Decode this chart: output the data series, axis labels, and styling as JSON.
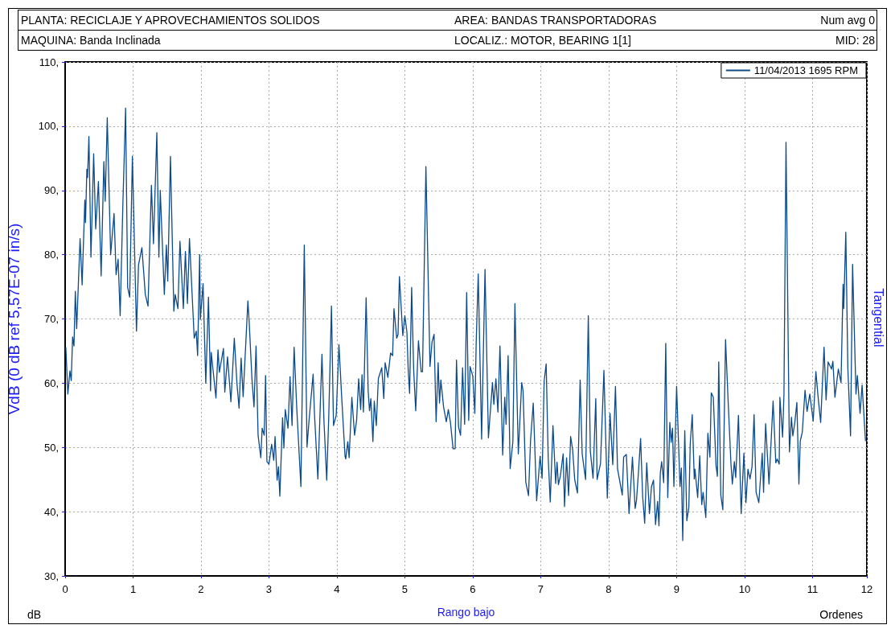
{
  "chart_data": {
    "type": "line",
    "ylabel": "VdB (0 dB ref 5,57E-07 in/s)",
    "xlabel": "Rango bajo",
    "annotations": [
      "PLANTA: RECICLAJE Y APROVECHAMIENTOS SOLIDOS",
      "AREA: BANDAS TRANSPORTADORAS",
      "Num avg 0",
      "MAQUINA: Banda Inclinada",
      "LOCALIZ.: MOTOR, BEARING 1[1]",
      "MID: 28",
      "Tangential",
      "dB",
      "Ordenes"
    ],
    "xlim": [
      0,
      11.8
    ],
    "xticks": [
      0,
      1,
      2,
      3,
      4,
      5,
      6,
      7,
      8,
      9,
      10,
      11,
      {
        "value": 11.8,
        "label": "12"
      }
    ],
    "ylim": [
      30,
      110
    ],
    "yticks": [
      {
        "value": 30,
        "label": "30,"
      },
      {
        "value": 40,
        "label": "40,"
      },
      {
        "value": 50,
        "label": "50,"
      },
      {
        "value": 60,
        "label": "60,"
      },
      {
        "value": 70,
        "label": "70,"
      },
      {
        "value": 80,
        "label": "80,"
      },
      {
        "value": 90,
        "label": "90,"
      },
      {
        "value": 100,
        "label": "100,"
      },
      {
        "value": 110,
        "label": "110,"
      }
    ],
    "grid": true,
    "legend": "top right",
    "marker": "none",
    "line_style": "solid",
    "series": [
      {
        "name": "11/04/2013 1695 RPM",
        "color": "#0b4a8b",
        "x": [
          0.01,
          0.04,
          0.07,
          0.09,
          0.11,
          0.13,
          0.15,
          0.17,
          0.22,
          0.25,
          0.29,
          0.3,
          0.32,
          0.33,
          0.35,
          0.38,
          0.42,
          0.45,
          0.49,
          0.53,
          0.57,
          0.59,
          0.62,
          0.67,
          0.72,
          0.75,
          0.78,
          0.81,
          0.85,
          0.89,
          0.92,
          0.95,
          0.99,
          1.05,
          1.08,
          1.13,
          1.18,
          1.22,
          1.27,
          1.3,
          1.35,
          1.38,
          1.4,
          1.46,
          1.49,
          1.51,
          1.55,
          1.6,
          1.62,
          1.66,
          1.69,
          1.74,
          1.77,
          1.8,
          1.83,
          1.9,
          1.93,
          1.95,
          1.98,
          1.99,
          2.03,
          2.07,
          2.11,
          2.14,
          2.15,
          2.22,
          2.25,
          2.27,
          2.33,
          2.35,
          2.39,
          2.44,
          2.49,
          2.53,
          2.56,
          2.59,
          2.62,
          2.69,
          2.71,
          2.75,
          2.78,
          2.81,
          2.84,
          2.88,
          2.9,
          2.93,
          2.95,
          2.97,
          3.0,
          3.04,
          3.07,
          3.09,
          3.12,
          3.14,
          3.16,
          3.2,
          3.22,
          3.24,
          3.28,
          3.31,
          3.34,
          3.37,
          3.41,
          3.43,
          3.47,
          3.52,
          3.56,
          3.59,
          3.65,
          3.67,
          3.72,
          3.78,
          3.81,
          3.85,
          3.88,
          3.92,
          3.95,
          3.99,
          4.03,
          4.07,
          4.12,
          4.13,
          4.16,
          4.18,
          4.22,
          4.26,
          4.29,
          4.32,
          4.35,
          4.37,
          4.39,
          4.43,
          4.46,
          4.48,
          4.5,
          4.53,
          4.55,
          4.58,
          4.61,
          4.66,
          4.69,
          4.71,
          4.75,
          4.79,
          4.82,
          4.84,
          4.88,
          4.9,
          4.92,
          4.97,
          5.0,
          5.03,
          5.05,
          5.07,
          5.1,
          5.13,
          5.16,
          5.2,
          5.24,
          5.26,
          5.31,
          5.37,
          5.4,
          5.43,
          5.46,
          5.49,
          5.51,
          5.53,
          5.57,
          5.61,
          5.64,
          5.67,
          5.71,
          5.74,
          5.76,
          5.79,
          5.82,
          5.85,
          5.88,
          5.91,
          5.94,
          5.96,
          6.0,
          6.03,
          6.05,
          6.08,
          6.13,
          6.18,
          6.23,
          6.29,
          6.31,
          6.34,
          6.37,
          6.4,
          6.44,
          6.47,
          6.49,
          6.52,
          6.55,
          6.59,
          6.62,
          6.67,
          6.72,
          6.74,
          6.78,
          6.82,
          6.85,
          6.89,
          6.94,
          6.99,
          7.02,
          7.05,
          7.08,
          7.11,
          7.14,
          7.18,
          7.22,
          7.24,
          7.26,
          7.29,
          7.33,
          7.35,
          7.38,
          7.41,
          7.44,
          7.47,
          7.5,
          7.54,
          7.58,
          7.61,
          7.66,
          7.7,
          7.73,
          7.77,
          7.81,
          7.83,
          7.88,
          7.93,
          7.98,
          8.02,
          8.06,
          8.1,
          8.13,
          8.2,
          8.22,
          8.26,
          8.3,
          8.35,
          8.39,
          8.41,
          8.44,
          8.47,
          8.5,
          8.53,
          8.56,
          8.6,
          8.63,
          8.66,
          8.69,
          8.72,
          8.74,
          8.76,
          8.78,
          8.81,
          8.84,
          8.87,
          8.9,
          8.92,
          8.94,
          8.96,
          9.0,
          9.05,
          9.07,
          9.09,
          9.12,
          9.15,
          9.18,
          9.2,
          9.23,
          9.26,
          9.27,
          9.31,
          9.34,
          9.37,
          9.39,
          9.43,
          9.46,
          9.49,
          9.51,
          9.54,
          9.58,
          9.6,
          9.62,
          9.65,
          9.68,
          9.72,
          9.76,
          9.8,
          9.82,
          9.85,
          9.87,
          9.91,
          9.95,
          9.99,
          10.02,
          10.05,
          10.08,
          10.11,
          10.14,
          10.17,
          10.21,
          10.26,
          10.28,
          10.31,
          10.36,
          10.42,
          10.46,
          10.48,
          10.51,
          10.52,
          10.56,
          10.58,
          10.61,
          10.66,
          10.69,
          10.71,
          10.74,
          10.77,
          10.8,
          10.82,
          10.85,
          10.89,
          10.92,
          10.96,
          11.01,
          11.05,
          11.08,
          11.12,
          11.17,
          11.2,
          11.23,
          11.28,
          11.3,
          11.33,
          11.38,
          11.42,
          11.45,
          11.46,
          11.49,
          11.52,
          11.56,
          11.59,
          11.64,
          11.66,
          11.7,
          11.73,
          11.78
        ],
        "values": [
          65.6,
          58.3,
          61.9,
          60.4,
          67.2,
          65.8,
          74.3,
          68.5,
          82.5,
          75.3,
          88.5,
          85.0,
          93.3,
          92.0,
          98.4,
          79.6,
          95.7,
          84.0,
          91.4,
          76.7,
          94.5,
          88.3,
          101.3,
          80.0,
          86.4,
          76.9,
          79.3,
          70.5,
          87.9,
          102.8,
          74.9,
          73.4,
          95.3,
          68.1,
          78.4,
          81.1,
          73.8,
          72.0,
          90.8,
          81.7,
          99.0,
          79.6,
          90.0,
          73.8,
          81.5,
          75.9,
          95.3,
          71.2,
          73.8,
          71.6,
          82.1,
          71.6,
          80.5,
          72.4,
          82.5,
          67.0,
          68.1,
          64.3,
          80.0,
          69.9,
          75.5,
          60.0,
          73.4,
          58.8,
          64.8,
          57.7,
          65.2,
          61.7,
          65.4,
          58.6,
          64.1,
          57.1,
          67.0,
          59.8,
          56.1,
          63.9,
          57.9,
          72.8,
          69.3,
          60.6,
          56.3,
          65.8,
          51.9,
          48.4,
          53.0,
          51.9,
          61.2,
          47.8,
          47.4,
          50.5,
          48.0,
          51.7,
          44.9,
          47.0,
          42.4,
          54.6,
          49.9,
          55.9,
          53.0,
          61.0,
          53.4,
          65.6,
          55.9,
          51.9,
          43.9,
          81.5,
          50.1,
          54.2,
          61.4,
          55.2,
          45.1,
          64.5,
          54.0,
          44.9,
          54.8,
          72.0,
          53.4,
          55.0,
          66.0,
          57.9,
          48.6,
          48.2,
          50.9,
          48.4,
          57.8,
          51.9,
          54.2,
          60.7,
          55.9,
          61.3,
          55.5,
          73.3,
          58.8,
          55.7,
          57.6,
          50.9,
          57.2,
          53.4,
          60.7,
          62.4,
          57.6,
          63.2,
          60.9,
          64.7,
          64.3,
          71.6,
          67.0,
          67.6,
          76.6,
          67.4,
          70.5,
          68.0,
          62.0,
          58.4,
          74.9,
          62.0,
          55.7,
          66.6,
          61.8,
          61.8,
          93.7,
          62.6,
          66.4,
          67.6,
          54.0,
          63.2,
          56.9,
          60.5,
          56.3,
          54.0,
          55.9,
          54.0,
          49.8,
          49.8,
          63.6,
          53.2,
          51.9,
          62.4,
          53.6,
          74.1,
          54.2,
          62.6,
          61.1,
          55.3,
          66.2,
          77.0,
          51.3,
          77.7,
          51.5,
          60.1,
          56.7,
          60.7,
          55.5,
          65.8,
          48.8,
          57.8,
          53.6,
          64.3,
          46.7,
          50.9,
          72.4,
          49.0,
          60.1,
          58.8,
          44.6,
          42.5,
          51.1,
          56.9,
          41.7,
          48.6,
          45.2,
          60.3,
          63.0,
          48.4,
          41.5,
          53.4,
          44.4,
          47.7,
          44.2,
          45.6,
          49.0,
          40.8,
          48.4,
          42.5,
          51.7,
          49.6,
          45.0,
          42.9,
          60.5,
          49.0,
          45.0,
          70.5,
          49.4,
          45.2,
          57.6,
          45.0,
          47.5,
          62.0,
          42.1,
          55.3,
          47.3,
          59.5,
          46.7,
          42.6,
          48.5,
          48.9,
          39.7,
          48.5,
          40.5,
          41.8,
          46.4,
          51.4,
          42.4,
          38.2,
          47.6,
          39.7,
          43.9,
          44.9,
          38.0,
          41.6,
          37.8,
          46.0,
          47.8,
          44.5,
          66.2,
          42.2,
          53.9,
          50.8,
          53.0,
          43.9,
          59.5,
          43.9,
          46.8,
          35.5,
          52.6,
          38.6,
          40.7,
          50.5,
          55.1,
          45.1,
          46.6,
          42.2,
          48.7,
          41.1,
          43.0,
          39.1,
          52.2,
          48.5,
          58.5,
          57.8,
          47.2,
          45.5,
          63.3,
          42.6,
          40.3,
          66.8,
          56.8,
          47.4,
          44.3,
          47.8,
          45.3,
          55.0,
          39.7,
          49.1,
          41.4,
          46.6,
          45.1,
          47.0,
          55.1,
          43.0,
          41.4,
          49.1,
          43.0,
          53.7,
          44.3,
          57.2,
          47.6,
          48.2,
          47.4,
          57.8,
          51.6,
          58.3,
          97.5,
          49.3,
          54.7,
          51.8,
          53.9,
          57.0,
          44.3,
          51.0,
          52.4,
          58.9,
          55.6,
          58.3,
          54.1,
          61.8,
          58.1,
          53.9,
          65.6,
          57.4,
          63.3,
          62.2,
          63.4,
          57.8,
          62.2,
          60.1,
          75.4,
          71.6,
          83.5,
          62.4,
          51.8,
          78.5,
          58.3,
          61.2,
          55.3,
          59.7,
          51.0
        ]
      }
    ]
  }
}
